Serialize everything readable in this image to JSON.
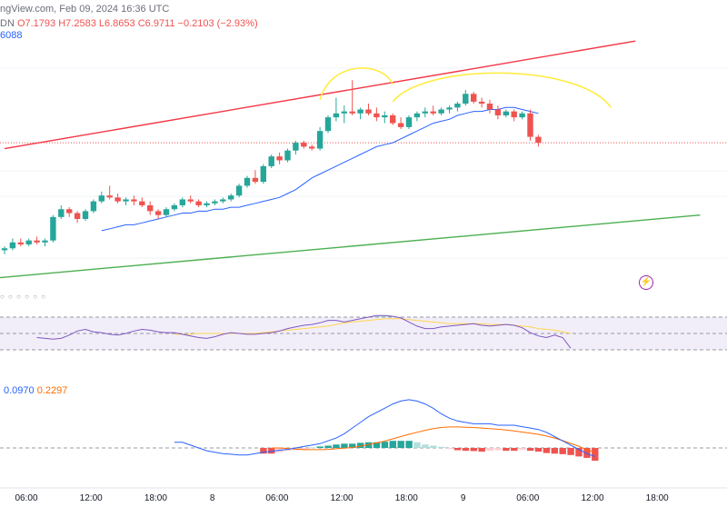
{
  "header": {
    "source": "ngView.com, Feb 09, 2024 16:36 UTC",
    "sym_suffix": "DN",
    "open": "O7.1793",
    "high": "H7.2583",
    "low": "L6.8653",
    "close": "C6.9711",
    "change": "−0.2103 (−2.93%)",
    "ma_value": "6088"
  },
  "indicator_dots": "○ ○ ○ ○ ○ ○",
  "macd_header": {
    "macd": "0.0970",
    "signal": "0.2297"
  },
  "icons": {
    "bolt": "lightning-icon"
  },
  "colors": {
    "up": "#26a69a",
    "down": "#ef5350",
    "ma": "#2962ff",
    "resistance": "#f23645",
    "support": "#4caf50",
    "arcs": "#ffeb3b",
    "rsi": "#7e57c2",
    "rsi_ma": "#ffd54f",
    "signal": "#ff6d00"
  },
  "chart_data": [
    {
      "type": "candlestick",
      "x_ticks": [
        "06:00",
        "12:00",
        "18:00",
        "8",
        "06:00",
        "12:00",
        "18:00",
        "9",
        "06:00",
        "12:00",
        "18:00"
      ],
      "x_tick_index": [
        0,
        8,
        16,
        23,
        31,
        39,
        47,
        54,
        62,
        70,
        78
      ],
      "ylim": [
        6.25,
        7.7
      ],
      "candles": [
        [
          6.42,
          6.44,
          6.4,
          6.43
        ],
        [
          6.43,
          6.48,
          6.42,
          6.46
        ],
        [
          6.46,
          6.48,
          6.44,
          6.45
        ],
        [
          6.45,
          6.48,
          6.44,
          6.47
        ],
        [
          6.47,
          6.49,
          6.45,
          6.46
        ],
        [
          6.46,
          6.48,
          6.44,
          6.47
        ],
        [
          6.47,
          6.6,
          6.46,
          6.59
        ],
        [
          6.59,
          6.65,
          6.58,
          6.63
        ],
        [
          6.63,
          6.64,
          6.59,
          6.61
        ],
        [
          6.61,
          6.62,
          6.56,
          6.58
        ],
        [
          6.58,
          6.63,
          6.57,
          6.62
        ],
        [
          6.62,
          6.68,
          6.61,
          6.67
        ],
        [
          6.67,
          6.72,
          6.66,
          6.7
        ],
        [
          6.7,
          6.75,
          6.68,
          6.69
        ],
        [
          6.69,
          6.71,
          6.66,
          6.67
        ],
        [
          6.67,
          6.69,
          6.65,
          6.68
        ],
        [
          6.68,
          6.7,
          6.65,
          6.67
        ],
        [
          6.67,
          6.69,
          6.64,
          6.65
        ],
        [
          6.65,
          6.67,
          6.6,
          6.62
        ],
        [
          6.62,
          6.63,
          6.58,
          6.6
        ],
        [
          6.6,
          6.64,
          6.59,
          6.63
        ],
        [
          6.63,
          6.66,
          6.62,
          6.65
        ],
        [
          6.65,
          6.69,
          6.64,
          6.68
        ],
        [
          6.68,
          6.7,
          6.66,
          6.67
        ],
        [
          6.67,
          6.68,
          6.64,
          6.65
        ],
        [
          6.65,
          6.67,
          6.64,
          6.66
        ],
        [
          6.66,
          6.68,
          6.65,
          6.67
        ],
        [
          6.67,
          6.69,
          6.66,
          6.68
        ],
        [
          6.68,
          6.71,
          6.67,
          6.7
        ],
        [
          6.7,
          6.76,
          6.69,
          6.75
        ],
        [
          6.75,
          6.8,
          6.74,
          6.79
        ],
        [
          6.79,
          6.83,
          6.76,
          6.77
        ],
        [
          6.77,
          6.86,
          6.76,
          6.85
        ],
        [
          6.85,
          6.91,
          6.84,
          6.9
        ],
        [
          6.9,
          6.92,
          6.86,
          6.88
        ],
        [
          6.88,
          6.94,
          6.87,
          6.93
        ],
        [
          6.93,
          6.98,
          6.91,
          6.97
        ],
        [
          6.97,
          6.98,
          6.94,
          6.95
        ],
        [
          6.95,
          6.96,
          6.93,
          6.94
        ],
        [
          6.94,
          7.05,
          6.93,
          7.03
        ],
        [
          7.03,
          7.11,
          7.02,
          7.1
        ],
        [
          7.1,
          7.2,
          7.08,
          7.12
        ],
        [
          7.12,
          7.16,
          7.07,
          7.13
        ],
        [
          7.13,
          7.29,
          7.11,
          7.12
        ],
        [
          7.12,
          7.15,
          7.09,
          7.14
        ],
        [
          7.14,
          7.17,
          7.11,
          7.12
        ],
        [
          7.12,
          7.15,
          7.08,
          7.1
        ],
        [
          7.1,
          7.13,
          7.07,
          7.11
        ],
        [
          7.11,
          7.12,
          7.06,
          7.07
        ],
        [
          7.07,
          7.1,
          7.04,
          7.05
        ],
        [
          7.05,
          7.11,
          7.04,
          7.1
        ],
        [
          7.1,
          7.13,
          7.08,
          7.12
        ],
        [
          7.12,
          7.15,
          7.1,
          7.13
        ],
        [
          7.13,
          7.16,
          7.11,
          7.12
        ],
        [
          7.12,
          7.15,
          7.11,
          7.14
        ],
        [
          7.14,
          7.16,
          7.12,
          7.15
        ],
        [
          7.15,
          7.18,
          7.13,
          7.17
        ],
        [
          7.17,
          7.24,
          7.16,
          7.22
        ],
        [
          7.22,
          7.23,
          7.17,
          7.18
        ],
        [
          7.18,
          7.2,
          7.15,
          7.17
        ],
        [
          7.17,
          7.19,
          7.12,
          7.14
        ],
        [
          7.14,
          7.16,
          7.09,
          7.11
        ],
        [
          7.11,
          7.14,
          7.1,
          7.13
        ],
        [
          7.13,
          7.14,
          7.08,
          7.1
        ],
        [
          7.1,
          7.13,
          7.09,
          7.12
        ],
        [
          7.12,
          7.14,
          6.98,
          7.0
        ],
        [
          7.0,
          7.01,
          6.95,
          6.97
        ]
      ],
      "ma": [
        null,
        null,
        null,
        null,
        null,
        null,
        null,
        null,
        null,
        null,
        null,
        null,
        6.52,
        6.53,
        6.54,
        6.55,
        6.55,
        6.56,
        6.57,
        6.58,
        6.59,
        6.6,
        6.61,
        6.61,
        6.62,
        6.62,
        6.63,
        6.63,
        6.64,
        6.64,
        6.65,
        6.66,
        6.67,
        6.68,
        6.69,
        6.71,
        6.73,
        6.76,
        6.79,
        6.81,
        6.83,
        6.85,
        6.87,
        6.89,
        6.91,
        6.93,
        6.95,
        6.96,
        6.97,
        6.99,
        7.01,
        7.03,
        7.05,
        7.07,
        7.08,
        7.09,
        7.11,
        7.12,
        7.13,
        7.13,
        7.14,
        7.14,
        7.15,
        7.15,
        7.14,
        7.13,
        7.12
      ],
      "resistance_line": [
        [
          0,
          6.94
        ],
        [
          78,
          7.49
        ]
      ],
      "support_line": [
        [
          0,
          6.28
        ],
        [
          86,
          6.6
        ]
      ],
      "arcs": [
        [
          39,
          48,
          7.19,
          7.27,
          0.12
        ],
        [
          48,
          75,
          7.18,
          7.15,
          0.2
        ]
      ]
    },
    {
      "type": "line",
      "name": "RSI",
      "ylim": [
        0,
        100
      ],
      "bands": [
        30,
        50,
        70
      ],
      "rsi": [
        45,
        44,
        43,
        44,
        48,
        53,
        55,
        52,
        51,
        49,
        48,
        50,
        53,
        55,
        54,
        52,
        51,
        51,
        49,
        47,
        45,
        44,
        46,
        49,
        51,
        50,
        49,
        49,
        50,
        51,
        53,
        56,
        58,
        60,
        61,
        63,
        66,
        66,
        64,
        66,
        68,
        70,
        72,
        72,
        71,
        69,
        64,
        59,
        56,
        56,
        58,
        59,
        60,
        61,
        62,
        60,
        59,
        60,
        61,
        60,
        57,
        51,
        47,
        45,
        48,
        45,
        32
      ],
      "rsi_ma": [
        null,
        null,
        null,
        null,
        null,
        null,
        null,
        null,
        null,
        null,
        null,
        null,
        null,
        null,
        null,
        null,
        null,
        49,
        49,
        49,
        50,
        50,
        50,
        50,
        50,
        50,
        50,
        50,
        51,
        52,
        53,
        54,
        55,
        56,
        57,
        58,
        59,
        61,
        63,
        64,
        65,
        66,
        67,
        68,
        68,
        68,
        67,
        66,
        65,
        64,
        63,
        62,
        62,
        62,
        62,
        62,
        61,
        61,
        61,
        60,
        59,
        58,
        56,
        55,
        54,
        52,
        50
      ]
    },
    {
      "type": "bar",
      "name": "MACD",
      "ylim": [
        -0.08,
        0.24
      ],
      "hist_start": 32,
      "hist": [
        -0.02,
        -0.02,
        -0.015,
        -0.01,
        -0.008,
        -0.005,
        0.002,
        0.005,
        0.008,
        0.012,
        0.015,
        0.015,
        0.018,
        0.02,
        0.02,
        0.022,
        0.025,
        0.025,
        0.025,
        0.02,
        0.012,
        0.008,
        0.004,
        -0.003,
        -0.008,
        -0.01,
        -0.011,
        -0.013,
        -0.01,
        -0.008,
        -0.01,
        -0.01,
        -0.007,
        -0.01,
        -0.013,
        -0.018,
        -0.02,
        -0.022,
        -0.025,
        -0.03,
        -0.035,
        -0.045
      ],
      "macd_start": 21,
      "macd": [
        0.02,
        0.02,
        0.01,
        0.0,
        -0.01,
        -0.015,
        -0.02,
        -0.022,
        -0.025,
        -0.025,
        -0.02,
        -0.015,
        -0.012,
        -0.008,
        -0.005,
        0.0,
        0.005,
        0.01,
        0.015,
        0.025,
        0.035,
        0.05,
        0.07,
        0.09,
        0.11,
        0.125,
        0.14,
        0.155,
        0.165,
        0.17,
        0.165,
        0.155,
        0.14,
        0.12,
        0.105,
        0.095,
        0.09,
        0.085,
        0.085,
        0.085,
        0.08,
        0.08,
        0.08,
        0.075,
        0.07,
        0.065,
        0.055,
        0.04,
        0.025,
        0.01,
        -0.005,
        -0.02,
        -0.03
      ],
      "signal_start": 33,
      "signal": [
        0.0,
        0.0,
        -0.002,
        -0.004,
        -0.006,
        -0.006,
        -0.006,
        -0.005,
        -0.003,
        -0.001,
        0.002,
        0.006,
        0.012,
        0.018,
        0.024,
        0.032,
        0.04,
        0.048,
        0.055,
        0.062,
        0.068,
        0.072,
        0.074,
        0.074,
        0.073,
        0.072,
        0.07,
        0.068,
        0.066,
        0.063,
        0.06,
        0.056,
        0.052,
        0.048,
        0.042,
        0.035,
        0.026,
        0.016,
        0.006,
        -0.006,
        -0.015
      ]
    }
  ]
}
